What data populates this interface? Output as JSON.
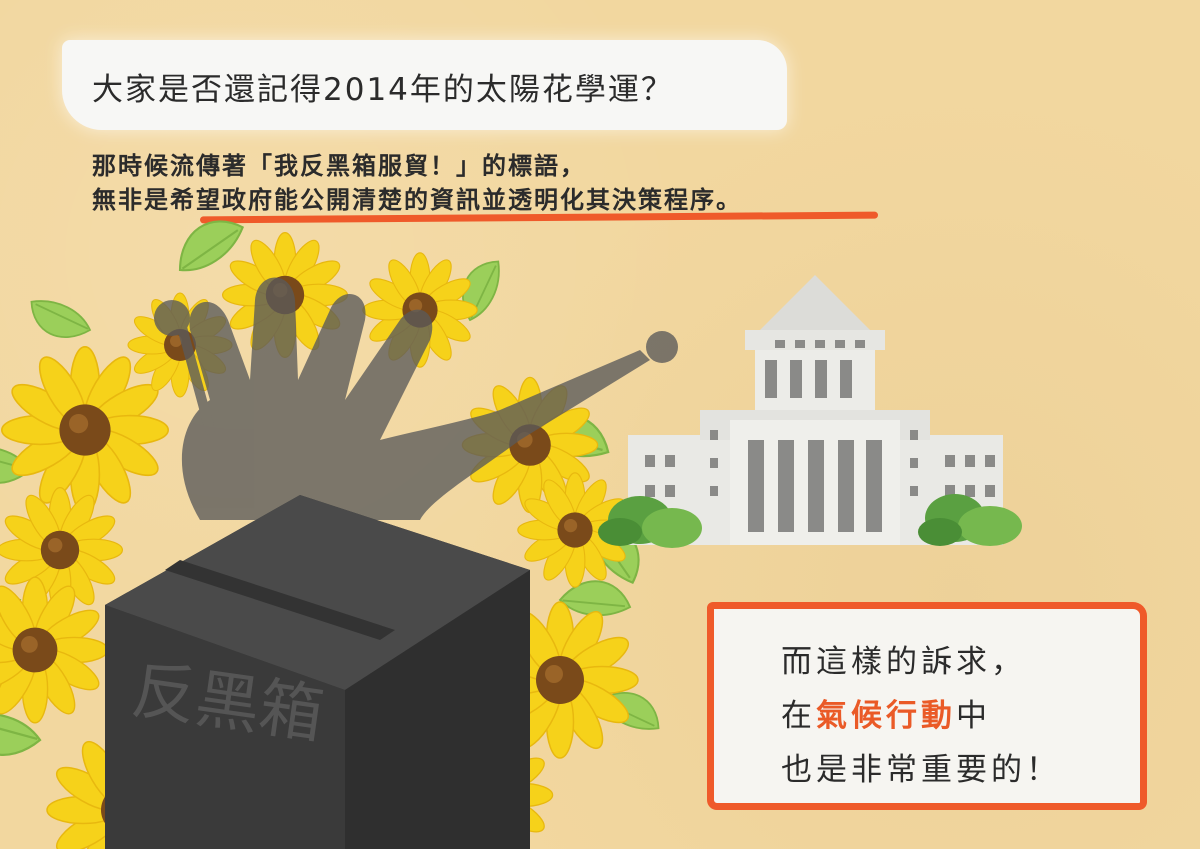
{
  "header": {
    "question": "大家是否還記得2014年的太陽花學運？"
  },
  "body": {
    "line1": "那時候流傳著「我反黑箱服貿！」的標語，",
    "line2_prefix": "無非是",
    "line2_highlight": "希望政府能公開清楚的資訊並透明化其決策程序。"
  },
  "box": {
    "label": "反黑箱"
  },
  "callout": {
    "line1": "而這樣的訴求，",
    "line2_prefix": "在",
    "line2_highlight": "氣候行動",
    "line2_suffix": "中",
    "line3": "也是非常重要的！"
  },
  "colors": {
    "background": "#f2d79f",
    "accent": "#ea5a27",
    "text": "#2b2b2b",
    "box": "#3b3b3b",
    "sunflower_petal": "#f6d21a",
    "sunflower_center": "#7a4a1a",
    "leaf": "#9bcf5a",
    "building": "#e3e3e0"
  },
  "icons": [
    "sunflower-icon",
    "black-box-icon",
    "shadow-hand-icon",
    "parliament-building-icon",
    "bush-icon"
  ]
}
